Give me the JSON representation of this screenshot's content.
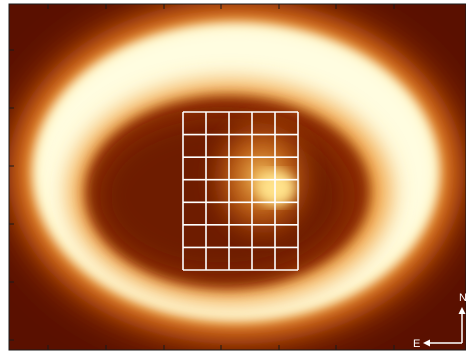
{
  "image": {
    "subject": "ring-nebula-heatmap",
    "colormap": [
      "#4a0a00",
      "#8a2a00",
      "#c85a0a",
      "#f39a2a",
      "#ffe08a",
      "#fffde0"
    ],
    "frame_color": "#ffffff",
    "grid": {
      "columns": 5,
      "rows": 7,
      "line_color": "#ffffff"
    }
  },
  "compass": {
    "north_label": "N",
    "east_label": "E",
    "color": "#ffffff"
  }
}
